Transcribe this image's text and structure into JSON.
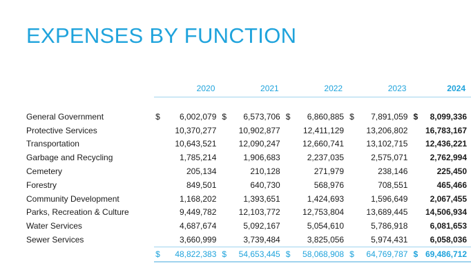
{
  "title": "EXPENSES BY FUNCTION",
  "years": [
    "2020",
    "2021",
    "2022",
    "2023",
    "2024"
  ],
  "rows": [
    {
      "label": "General Government",
      "values": [
        "6,002,079",
        "6,573,706",
        "6,860,885",
        "7,891,059",
        "8,099,336"
      ]
    },
    {
      "label": "Protective Services",
      "values": [
        "10,370,277",
        "10,902,877",
        "12,411,129",
        "13,206,802",
        "16,783,167"
      ]
    },
    {
      "label": "Transportation",
      "values": [
        "10,643,521",
        "12,090,247",
        "12,660,741",
        "13,102,715",
        "12,436,221"
      ]
    },
    {
      "label": "Garbage and Recycling",
      "values": [
        "1,785,214",
        "1,906,683",
        "2,237,035",
        "2,575,071",
        "2,762,994"
      ]
    },
    {
      "label": "Cemetery",
      "values": [
        "205,134",
        "210,128",
        "271,979",
        "238,146",
        "225,450"
      ]
    },
    {
      "label": "Forestry",
      "values": [
        "849,501",
        "640,730",
        "568,976",
        "708,551",
        "465,466"
      ]
    },
    {
      "label": "Community Development",
      "values": [
        "1,168,202",
        "1,393,651",
        "1,424,693",
        "1,596,649",
        "2,067,455"
      ]
    },
    {
      "label": "Parks, Recreation & Culture",
      "values": [
        "9,449,782",
        "12,103,772",
        "12,753,804",
        "13,689,445",
        "14,506,934"
      ]
    },
    {
      "label": "Water Services",
      "values": [
        "4,687,674",
        "5,092,167",
        "5,054,610",
        "5,786,918",
        "6,081,653"
      ]
    },
    {
      "label": "Sewer Services",
      "values": [
        "3,660,999",
        "3,739,484",
        "3,825,056",
        "5,974,431",
        "6,058,036"
      ]
    }
  ],
  "totals": [
    "48,822,383",
    "54,653,445",
    "58,068,908",
    "64,769,787",
    "69,486,712"
  ],
  "currency": "$"
}
